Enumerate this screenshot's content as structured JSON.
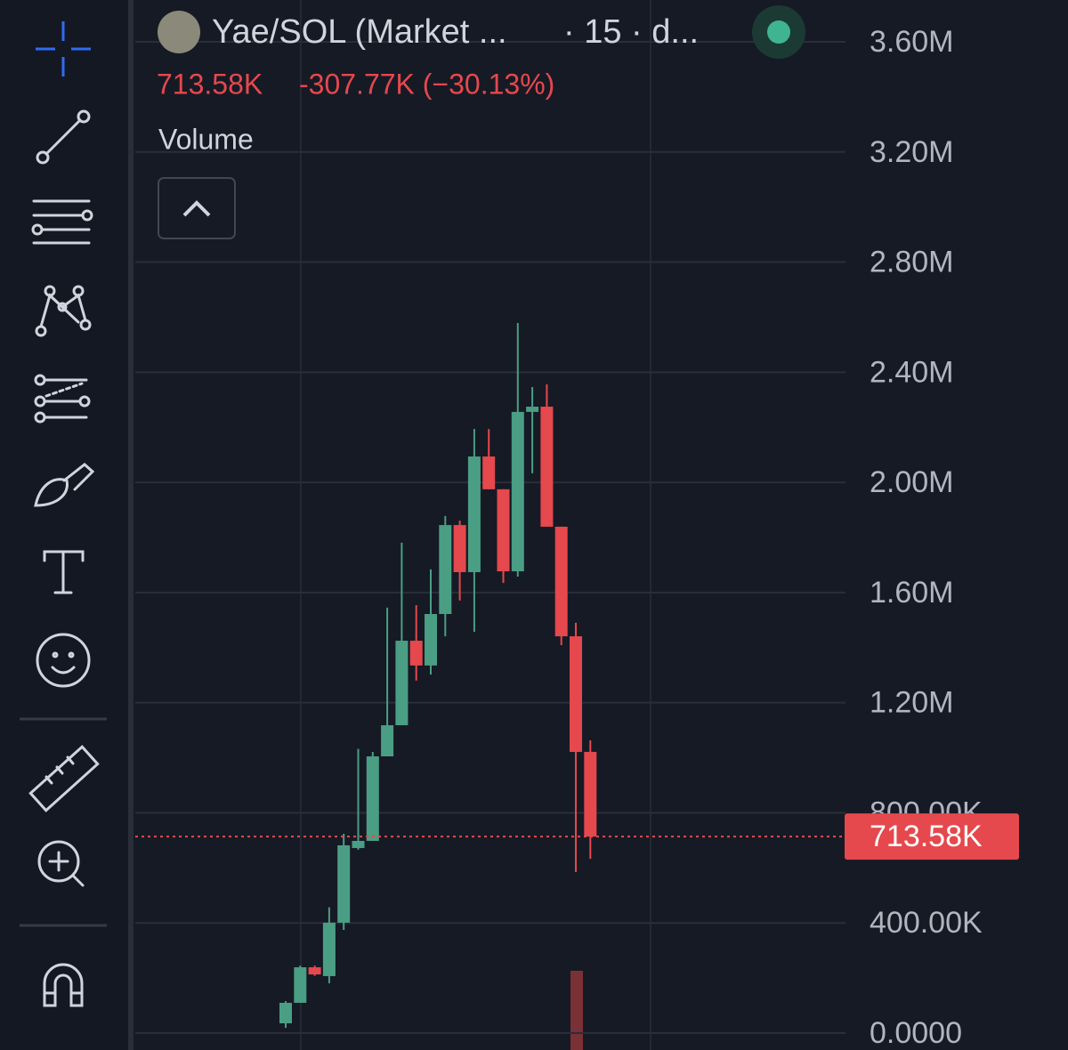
{
  "header": {
    "symbol": "Yae/SOL (Market ...",
    "interval": "· 15 · d...",
    "last": "713.58K",
    "change": "-307.77K (−30.13%)",
    "study": "Volume"
  },
  "chart_data": {
    "type": "candlestick",
    "open": [
      35500,
      110000,
      239000,
      207000,
      401000,
      672000,
      698000,
      1005000,
      1118000,
      1425000,
      1335000,
      1522000,
      1845000,
      1674000,
      2094000,
      1975000,
      1677000,
      2256000,
      2275000,
      1839000,
      1441000,
      1021350
    ],
    "high": [
      116000,
      245000,
      245000,
      457000,
      724000,
      1032000,
      1021000,
      1545000,
      1781000,
      1554000,
      1684000,
      1878000,
      1861000,
      2194000,
      2194000,
      1975000,
      2579000,
      2346000,
      2356000,
      1839000,
      1490000,
      1063000
    ],
    "low": [
      19000,
      110000,
      208000,
      181000,
      375000,
      666000,
      698000,
      1005000,
      1118000,
      1280000,
      1302000,
      1441000,
      1571000,
      1457000,
      1975000,
      1635000,
      1658000,
      2033000,
      1839000,
      1409000,
      585000,
      633000
    ],
    "close": [
      110000,
      239000,
      213000,
      401000,
      682000,
      698000,
      1005000,
      1118000,
      1425000,
      1335000,
      1522000,
      1845000,
      1674000,
      2094000,
      1975000,
      1677000,
      2256000,
      2275000,
      1839000,
      1441000,
      1021000,
      713580
    ],
    "up_color": "#4a9e84",
    "down_color": "#e5484d",
    "ylim": [
      0,
      3600000
    ],
    "yticks": [
      {
        "value": 0,
        "label": "0.0000"
      },
      {
        "value": 400000,
        "label": "400.00K"
      },
      {
        "value": 800000,
        "label": "800.00K"
      },
      {
        "value": 1200000,
        "label": "1.20M"
      },
      {
        "value": 1600000,
        "label": "1.60M"
      },
      {
        "value": 2000000,
        "label": "2.00M"
      },
      {
        "value": 2400000,
        "label": "2.40M"
      },
      {
        "value": 2800000,
        "label": "2.80M"
      },
      {
        "value": 3200000,
        "label": "3.20M"
      },
      {
        "value": 3600000,
        "label": "3.60M"
      }
    ],
    "grid": true,
    "current_price": {
      "value": 713580,
      "label": "713.58K"
    }
  }
}
